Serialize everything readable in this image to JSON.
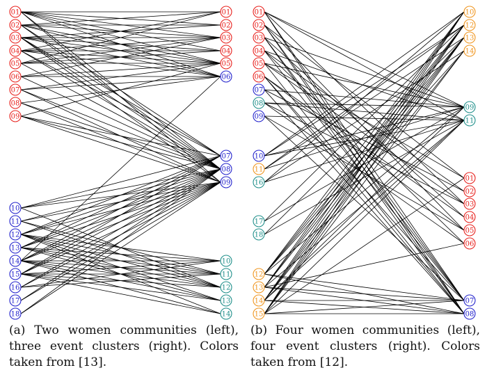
{
  "colors": {
    "red": "#e8201c",
    "blue": "#2222cc",
    "teal": "#1f8f8a",
    "orange": "#f0951e",
    "edge": "#000000"
  },
  "panel_a": {
    "left_nodes": [
      {
        "label": "01",
        "color": "red"
      },
      {
        "label": "02",
        "color": "red"
      },
      {
        "label": "03",
        "color": "red"
      },
      {
        "label": "04",
        "color": "red"
      },
      {
        "label": "05",
        "color": "red"
      },
      {
        "label": "06",
        "color": "red"
      },
      {
        "label": "07",
        "color": "red"
      },
      {
        "label": "08",
        "color": "red"
      },
      {
        "label": "09",
        "color": "red"
      },
      {
        "label": "10",
        "color": "blue"
      },
      {
        "label": "11",
        "color": "blue"
      },
      {
        "label": "12",
        "color": "blue"
      },
      {
        "label": "13",
        "color": "blue"
      },
      {
        "label": "14",
        "color": "blue"
      },
      {
        "label": "15",
        "color": "blue"
      },
      {
        "label": "16",
        "color": "blue"
      },
      {
        "label": "17",
        "color": "blue"
      },
      {
        "label": "18",
        "color": "blue"
      }
    ],
    "right_nodes": [
      {
        "label": "01",
        "color": "red"
      },
      {
        "label": "02",
        "color": "red"
      },
      {
        "label": "03",
        "color": "red"
      },
      {
        "label": "04",
        "color": "red"
      },
      {
        "label": "05",
        "color": "red"
      },
      {
        "label": "06",
        "color": "blue"
      },
      {
        "label": "07",
        "color": "blue"
      },
      {
        "label": "08",
        "color": "blue"
      },
      {
        "label": "09",
        "color": "blue"
      },
      {
        "label": "10",
        "color": "teal"
      },
      {
        "label": "11",
        "color": "teal"
      },
      {
        "label": "12",
        "color": "teal"
      },
      {
        "label": "13",
        "color": "teal"
      },
      {
        "label": "14",
        "color": "teal"
      }
    ],
    "caption": "(a) Two women communities (left), three event clusters (right). Colors taken from [13]."
  },
  "panel_b": {
    "left_nodes": [
      {
        "label": "01",
        "color": "red"
      },
      {
        "label": "02",
        "color": "red"
      },
      {
        "label": "03",
        "color": "red"
      },
      {
        "label": "04",
        "color": "red"
      },
      {
        "label": "05",
        "color": "red"
      },
      {
        "label": "06",
        "color": "red"
      },
      {
        "label": "07",
        "color": "blue"
      },
      {
        "label": "08",
        "color": "teal"
      },
      {
        "label": "09",
        "color": "blue"
      },
      {
        "label": "10",
        "color": "blue"
      },
      {
        "label": "11",
        "color": "orange"
      },
      {
        "label": "16",
        "color": "teal"
      },
      {
        "label": "17",
        "color": "teal"
      },
      {
        "label": "18",
        "color": "teal"
      },
      {
        "label": "12",
        "color": "orange"
      },
      {
        "label": "13",
        "color": "orange"
      },
      {
        "label": "14",
        "color": "orange"
      },
      {
        "label": "15",
        "color": "orange"
      }
    ],
    "right_nodes": [
      {
        "label": "10",
        "color": "orange"
      },
      {
        "label": "12",
        "color": "orange"
      },
      {
        "label": "13",
        "color": "orange"
      },
      {
        "label": "14",
        "color": "orange"
      },
      {
        "label": "09",
        "color": "teal"
      },
      {
        "label": "11",
        "color": "teal"
      },
      {
        "label": "01",
        "color": "red"
      },
      {
        "label": "02",
        "color": "red"
      },
      {
        "label": "03",
        "color": "red"
      },
      {
        "label": "04",
        "color": "red"
      },
      {
        "label": "05",
        "color": "red"
      },
      {
        "label": "06",
        "color": "red"
      },
      {
        "label": "07",
        "color": "blue"
      },
      {
        "label": "08",
        "color": "blue"
      }
    ],
    "caption": "(b) Four women communities (left), four event clusters (right). Colors taken from [12]."
  },
  "edges": [
    [
      "01",
      "01"
    ],
    [
      "01",
      "02"
    ],
    [
      "01",
      "03"
    ],
    [
      "01",
      "04"
    ],
    [
      "01",
      "05"
    ],
    [
      "01",
      "06"
    ],
    [
      "01",
      "08"
    ],
    [
      "01",
      "09"
    ],
    [
      "02",
      "01"
    ],
    [
      "02",
      "02"
    ],
    [
      "02",
      "03"
    ],
    [
      "02",
      "05"
    ],
    [
      "02",
      "06"
    ],
    [
      "02",
      "07"
    ],
    [
      "02",
      "08"
    ],
    [
      "03",
      "02"
    ],
    [
      "03",
      "03"
    ],
    [
      "03",
      "04"
    ],
    [
      "03",
      "05"
    ],
    [
      "03",
      "06"
    ],
    [
      "03",
      "07"
    ],
    [
      "03",
      "08"
    ],
    [
      "03",
      "09"
    ],
    [
      "04",
      "01"
    ],
    [
      "04",
      "03"
    ],
    [
      "04",
      "04"
    ],
    [
      "04",
      "05"
    ],
    [
      "04",
      "06"
    ],
    [
      "04",
      "07"
    ],
    [
      "04",
      "08"
    ],
    [
      "05",
      "01"
    ],
    [
      "05",
      "03"
    ],
    [
      "05",
      "04"
    ],
    [
      "05",
      "05"
    ],
    [
      "05",
      "08"
    ],
    [
      "06",
      "03"
    ],
    [
      "06",
      "05"
    ],
    [
      "06",
      "06"
    ],
    [
      "06",
      "08"
    ],
    [
      "07",
      "05"
    ],
    [
      "07",
      "06"
    ],
    [
      "07",
      "08"
    ],
    [
      "07",
      "09"
    ],
    [
      "08",
      "06"
    ],
    [
      "08",
      "08"
    ],
    [
      "08",
      "09"
    ],
    [
      "09",
      "05"
    ],
    [
      "09",
      "07"
    ],
    [
      "09",
      "08"
    ],
    [
      "09",
      "09"
    ],
    [
      "10",
      "07"
    ],
    [
      "10",
      "08"
    ],
    [
      "10",
      "09"
    ],
    [
      "10",
      "12"
    ],
    [
      "11",
      "08"
    ],
    [
      "11",
      "09"
    ],
    [
      "11",
      "11"
    ],
    [
      "11",
      "12"
    ],
    [
      "12",
      "07"
    ],
    [
      "12",
      "08"
    ],
    [
      "12",
      "09"
    ],
    [
      "12",
      "10"
    ],
    [
      "12",
      "11"
    ],
    [
      "12",
      "12"
    ],
    [
      "12",
      "13"
    ],
    [
      "12",
      "14"
    ],
    [
      "13",
      "07"
    ],
    [
      "13",
      "08"
    ],
    [
      "13",
      "09"
    ],
    [
      "13",
      "10"
    ],
    [
      "13",
      "11"
    ],
    [
      "13",
      "12"
    ],
    [
      "13",
      "13"
    ],
    [
      "14",
      "06"
    ],
    [
      "14",
      "07"
    ],
    [
      "14",
      "08"
    ],
    [
      "14",
      "09"
    ],
    [
      "14",
      "10"
    ],
    [
      "14",
      "11"
    ],
    [
      "14",
      "12"
    ],
    [
      "14",
      "13"
    ],
    [
      "14",
      "14"
    ],
    [
      "15",
      "07"
    ],
    [
      "15",
      "08"
    ],
    [
      "15",
      "09"
    ],
    [
      "15",
      "10"
    ],
    [
      "15",
      "11"
    ],
    [
      "15",
      "12"
    ],
    [
      "15",
      "13"
    ],
    [
      "15",
      "14"
    ],
    [
      "16",
      "08"
    ],
    [
      "16",
      "09"
    ],
    [
      "16",
      "10"
    ],
    [
      "16",
      "11"
    ],
    [
      "17",
      "08"
    ],
    [
      "17",
      "09"
    ],
    [
      "18",
      "08"
    ],
    [
      "18",
      "09"
    ]
  ]
}
